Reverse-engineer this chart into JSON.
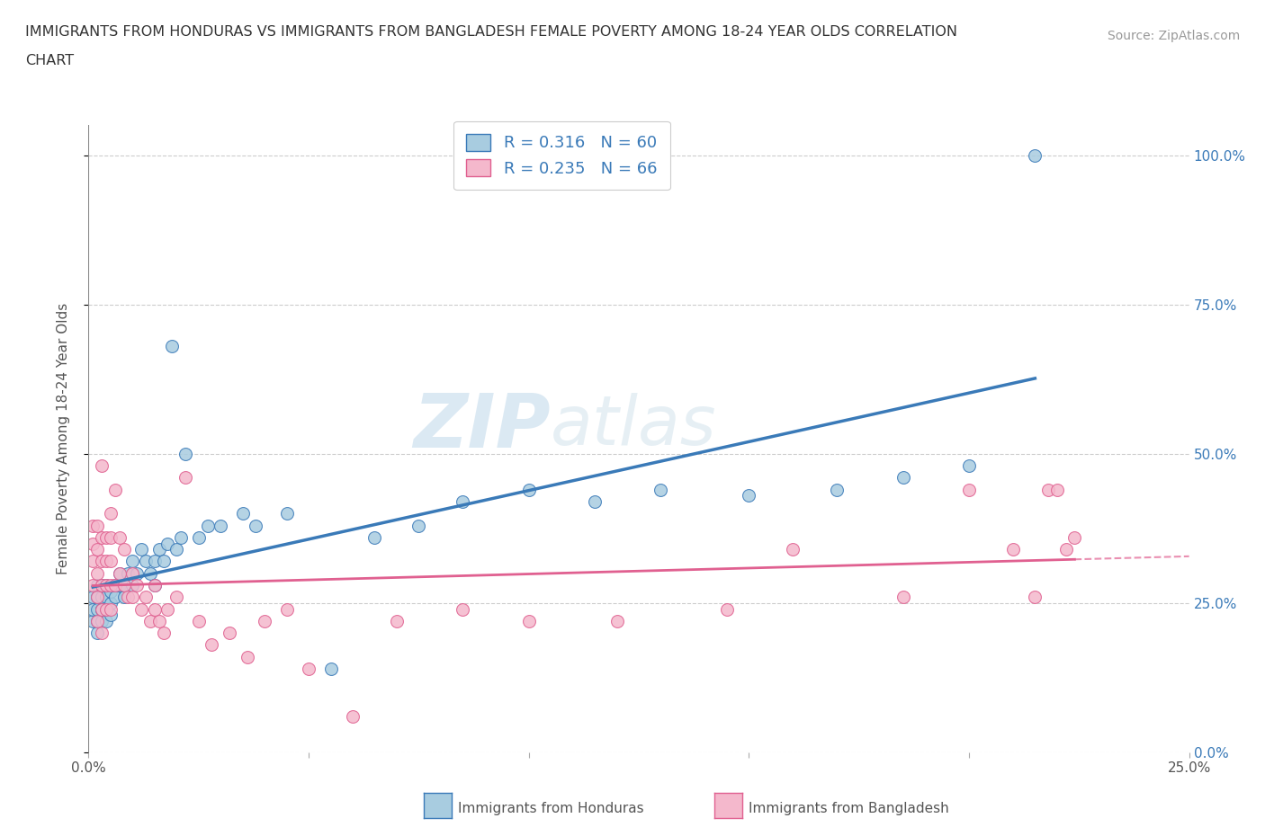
{
  "title_line1": "IMMIGRANTS FROM HONDURAS VS IMMIGRANTS FROM BANGLADESH FEMALE POVERTY AMONG 18-24 YEAR OLDS CORRELATION",
  "title_line2": "CHART",
  "source": "Source: ZipAtlas.com",
  "ylabel": "Female Poverty Among 18-24 Year Olds",
  "xlim": [
    0.0,
    0.25
  ],
  "ylim": [
    0.0,
    1.05
  ],
  "ytick_vals": [
    0.0,
    0.25,
    0.5,
    0.75,
    1.0
  ],
  "ytick_labels_right": [
    "0.0%",
    "25.0%",
    "50.0%",
    "75.0%",
    "100.0%"
  ],
  "xtick_vals": [
    0.0,
    0.05,
    0.1,
    0.15,
    0.2,
    0.25
  ],
  "xtick_labels": [
    "0.0%",
    "",
    "",
    "",
    "",
    "25.0%"
  ],
  "series1_label": "Immigrants from Honduras",
  "series2_label": "Immigrants from Bangladesh",
  "series1_R": "0.316",
  "series1_N": "60",
  "series2_R": "0.235",
  "series2_N": "66",
  "color1": "#a8cce0",
  "color2": "#f4b8cc",
  "trendline1_color": "#3a7ab8",
  "trendline2_color": "#e06090",
  "watermark_color": "#c8dff0",
  "background_color": "#ffffff",
  "grid_color": "#cccccc",
  "series1_x": [
    0.001,
    0.001,
    0.001,
    0.002,
    0.002,
    0.002,
    0.002,
    0.002,
    0.003,
    0.003,
    0.003,
    0.003,
    0.003,
    0.004,
    0.004,
    0.004,
    0.004,
    0.005,
    0.005,
    0.005,
    0.006,
    0.006,
    0.007,
    0.007,
    0.008,
    0.008,
    0.009,
    0.01,
    0.01,
    0.011,
    0.012,
    0.013,
    0.014,
    0.015,
    0.015,
    0.016,
    0.017,
    0.018,
    0.019,
    0.02,
    0.021,
    0.022,
    0.025,
    0.027,
    0.03,
    0.035,
    0.038,
    0.045,
    0.055,
    0.065,
    0.075,
    0.085,
    0.1,
    0.115,
    0.13,
    0.15,
    0.17,
    0.185,
    0.2,
    0.215
  ],
  "series1_y": [
    0.22,
    0.24,
    0.26,
    0.22,
    0.24,
    0.26,
    0.28,
    0.2,
    0.22,
    0.24,
    0.26,
    0.28,
    0.24,
    0.22,
    0.24,
    0.26,
    0.28,
    0.25,
    0.27,
    0.23,
    0.26,
    0.28,
    0.28,
    0.3,
    0.26,
    0.28,
    0.3,
    0.28,
    0.32,
    0.3,
    0.34,
    0.32,
    0.3,
    0.32,
    0.28,
    0.34,
    0.32,
    0.35,
    0.68,
    0.34,
    0.36,
    0.5,
    0.36,
    0.38,
    0.38,
    0.4,
    0.38,
    0.4,
    0.14,
    0.36,
    0.38,
    0.42,
    0.44,
    0.42,
    0.44,
    0.43,
    0.44,
    0.46,
    0.48,
    1.0
  ],
  "series2_x": [
    0.001,
    0.001,
    0.001,
    0.001,
    0.002,
    0.002,
    0.002,
    0.002,
    0.002,
    0.003,
    0.003,
    0.003,
    0.003,
    0.003,
    0.003,
    0.004,
    0.004,
    0.004,
    0.004,
    0.005,
    0.005,
    0.005,
    0.005,
    0.005,
    0.006,
    0.006,
    0.007,
    0.007,
    0.008,
    0.008,
    0.009,
    0.01,
    0.01,
    0.011,
    0.012,
    0.013,
    0.014,
    0.015,
    0.015,
    0.016,
    0.017,
    0.018,
    0.02,
    0.022,
    0.025,
    0.028,
    0.032,
    0.036,
    0.04,
    0.045,
    0.05,
    0.06,
    0.07,
    0.085,
    0.1,
    0.12,
    0.145,
    0.16,
    0.185,
    0.2,
    0.21,
    0.215,
    0.218,
    0.22,
    0.222,
    0.224
  ],
  "series2_y": [
    0.38,
    0.35,
    0.32,
    0.28,
    0.38,
    0.34,
    0.3,
    0.26,
    0.22,
    0.36,
    0.32,
    0.28,
    0.24,
    0.2,
    0.48,
    0.36,
    0.32,
    0.28,
    0.24,
    0.4,
    0.36,
    0.32,
    0.28,
    0.24,
    0.44,
    0.28,
    0.36,
    0.3,
    0.34,
    0.28,
    0.26,
    0.3,
    0.26,
    0.28,
    0.24,
    0.26,
    0.22,
    0.28,
    0.24,
    0.22,
    0.2,
    0.24,
    0.26,
    0.46,
    0.22,
    0.18,
    0.2,
    0.16,
    0.22,
    0.24,
    0.14,
    0.06,
    0.22,
    0.24,
    0.22,
    0.22,
    0.24,
    0.34,
    0.26,
    0.44,
    0.34,
    0.26,
    0.44,
    0.44,
    0.34,
    0.36
  ]
}
